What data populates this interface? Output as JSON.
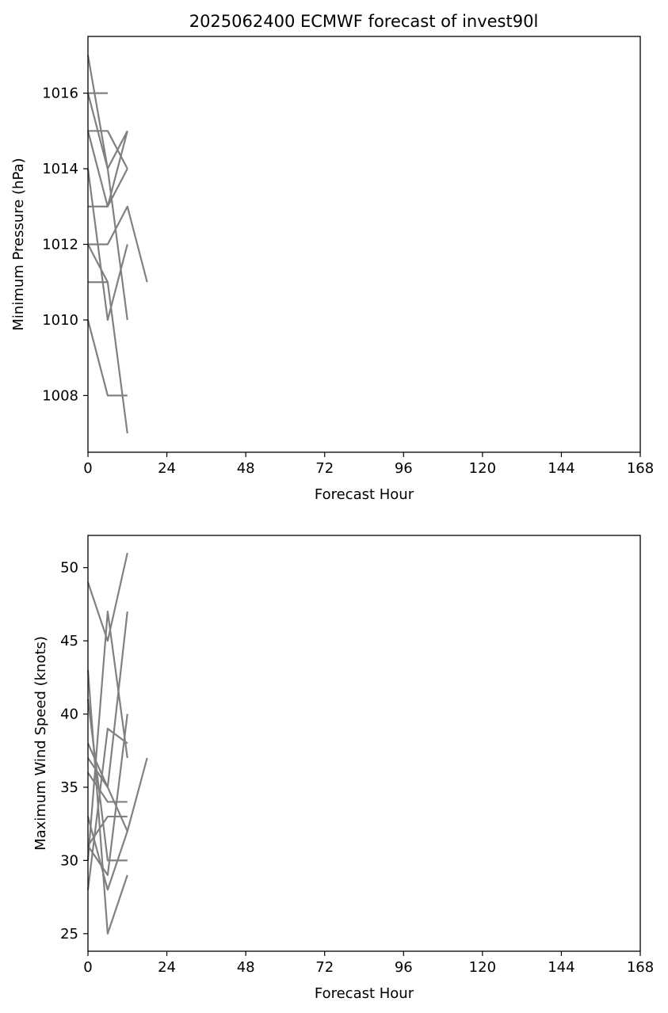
{
  "chart_data": [
    {
      "type": "line",
      "title": "2025062400 ECMWF forecast of invest90l",
      "xlabel": "Forecast Hour",
      "ylabel": "Minimum Pressure (hPa)",
      "xlim": [
        0,
        168
      ],
      "ylim": [
        1006.5,
        1017.5
      ],
      "xticks": [
        "0",
        "24",
        "48",
        "72",
        "96",
        "120",
        "144",
        "168"
      ],
      "yticks": [
        "1008",
        "1010",
        "1012",
        "1014",
        "1016"
      ],
      "grid": false,
      "line_color": "#808080",
      "series": [
        {
          "x": [
            0,
            6
          ],
          "y": [
            1016,
            1016
          ]
        },
        {
          "x": [
            0,
            6,
            12
          ],
          "y": [
            1015,
            1015,
            1014
          ]
        },
        {
          "x": [
            0,
            6,
            12
          ],
          "y": [
            1017,
            1014,
            1015
          ]
        },
        {
          "x": [
            0,
            6,
            12
          ],
          "y": [
            1016,
            1014,
            1010
          ]
        },
        {
          "x": [
            0,
            6,
            12
          ],
          "y": [
            1015,
            1013,
            1015
          ]
        },
        {
          "x": [
            0,
            6,
            12
          ],
          "y": [
            1013,
            1013,
            1014
          ]
        },
        {
          "x": [
            0,
            6,
            12
          ],
          "y": [
            1014,
            1010,
            1012
          ]
        },
        {
          "x": [
            0,
            6,
            12,
            18
          ],
          "y": [
            1012,
            1012,
            1013,
            1011
          ]
        },
        {
          "x": [
            0,
            6,
            12
          ],
          "y": [
            1012,
            1011,
            1007
          ]
        },
        {
          "x": [
            0,
            6
          ],
          "y": [
            1011,
            1011
          ]
        },
        {
          "x": [
            0,
            6,
            12
          ],
          "y": [
            1010,
            1008,
            1008
          ]
        }
      ]
    },
    {
      "type": "line",
      "title": "",
      "xlabel": "Forecast Hour",
      "ylabel": "Maximum Wind Speed (knots)",
      "xlim": [
        0,
        168
      ],
      "ylim": [
        23.8,
        52.2
      ],
      "xticks": [
        "0",
        "24",
        "48",
        "72",
        "96",
        "120",
        "144",
        "168"
      ],
      "yticks": [
        "25",
        "30",
        "35",
        "40",
        "45",
        "50"
      ],
      "grid": false,
      "line_color": "#808080",
      "series": [
        {
          "x": [
            0,
            6,
            12
          ],
          "y": [
            49,
            45,
            51
          ]
        },
        {
          "x": [
            0,
            6,
            12
          ],
          "y": [
            43,
            25,
            29
          ]
        },
        {
          "x": [
            0,
            6,
            12
          ],
          "y": [
            41,
            30,
            30
          ]
        },
        {
          "x": [
            0,
            6,
            12
          ],
          "y": [
            38,
            35,
            47
          ]
        },
        {
          "x": [
            0,
            6,
            12
          ],
          "y": [
            37,
            35,
            32
          ]
        },
        {
          "x": [
            0,
            6,
            12
          ],
          "y": [
            36,
            34,
            34
          ]
        },
        {
          "x": [
            0,
            6,
            12
          ],
          "y": [
            30,
            47,
            37
          ]
        },
        {
          "x": [
            0,
            6,
            12
          ],
          "y": [
            31,
            29,
            40
          ]
        },
        {
          "x": [
            0,
            6,
            12,
            18
          ],
          "y": [
            33,
            28,
            32,
            37
          ]
        },
        {
          "x": [
            0,
            6,
            12
          ],
          "y": [
            28,
            39,
            38
          ]
        },
        {
          "x": [
            0,
            6,
            12
          ],
          "y": [
            31,
            33,
            33
          ]
        }
      ]
    }
  ]
}
